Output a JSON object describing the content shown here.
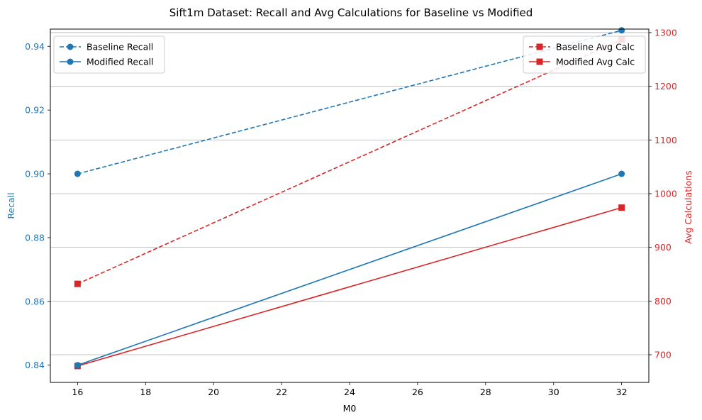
{
  "chart_data": {
    "type": "line",
    "title": "Sift1m Dataset: Recall and Avg Calculations for Baseline vs Modified",
    "xlabel": "M0",
    "ylabel_left": "Recall",
    "ylabel_right": "Avg Calculations",
    "x": [
      16,
      32
    ],
    "xlim": [
      15.2,
      32.8
    ],
    "ylim_left": [
      0.8346,
      0.9454
    ],
    "ylim_right": [
      648.5,
      1306.5
    ],
    "x_ticks": [
      16,
      18,
      20,
      22,
      24,
      26,
      28,
      30,
      32
    ],
    "y_ticks_left": [
      "0.84",
      "0.86",
      "0.88",
      "0.90",
      "0.92",
      "0.94"
    ],
    "y_ticks_right": [
      700,
      800,
      900,
      1000,
      1100,
      1200,
      1300
    ],
    "grid": "horizontal lines on right axis",
    "left_axis_color": "#1f77b4",
    "right_axis_color": "#d62728",
    "series_left": [
      {
        "name": "Baseline Recall",
        "values": [
          0.9,
          0.945
        ],
        "color": "#1f77b4",
        "linestyle": "dashed",
        "marker": "circle"
      },
      {
        "name": "Modified Recall",
        "values": [
          0.84,
          0.9
        ],
        "color": "#1f77b4",
        "linestyle": "solid",
        "marker": "circle"
      }
    ],
    "series_right": [
      {
        "name": "Baseline Avg Calc",
        "values": [
          832,
          1287
        ],
        "color": "#d62728",
        "linestyle": "dashed",
        "marker": "square"
      },
      {
        "name": "Modified Avg Calc",
        "values": [
          679,
          974
        ],
        "color": "#d62728",
        "linestyle": "solid",
        "marker": "square"
      }
    ],
    "legend_left_placement": "top-left",
    "legend_right_placement": "top-right"
  }
}
